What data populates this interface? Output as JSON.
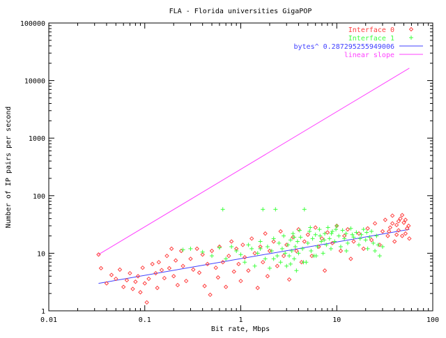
{
  "chart_data": {
    "type": "scatter",
    "title": "FLA - Florida universities GigaPOP",
    "xlabel": "Bit rate, Mbps",
    "ylabel": "Number of IP pairs per second",
    "xscale": "log",
    "yscale": "log",
    "xlim": [
      0.01,
      100
    ],
    "ylim": [
      1,
      100000
    ],
    "x_ticks": [
      {
        "value": 0.01,
        "label": "0.01"
      },
      {
        "value": 0.1,
        "label": "0.1"
      },
      {
        "value": 1,
        "label": "1"
      },
      {
        "value": 10,
        "label": "10"
      },
      {
        "value": 100,
        "label": "100"
      }
    ],
    "y_ticks": [
      {
        "value": 1,
        "label": "1"
      },
      {
        "value": 10,
        "label": "10"
      },
      {
        "value": 100,
        "label": "100"
      },
      {
        "value": 1000,
        "label": "1000"
      },
      {
        "value": 10000,
        "label": "10000"
      },
      {
        "value": 100000,
        "label": "100000"
      }
    ],
    "grid": false,
    "legend_position": "top-right",
    "series": [
      {
        "name": "Interface 0",
        "kind": "points",
        "marker": "diamond",
        "color": "#ff4040",
        "points": [
          [
            0.033,
            9.5
          ],
          [
            0.035,
            5.5
          ],
          [
            0.04,
            3
          ],
          [
            0.045,
            4.2
          ],
          [
            0.05,
            3.6
          ],
          [
            0.055,
            5.2
          ],
          [
            0.06,
            2.6
          ],
          [
            0.065,
            3.4
          ],
          [
            0.07,
            4.5
          ],
          [
            0.075,
            2.4
          ],
          [
            0.08,
            3.2
          ],
          [
            0.085,
            4
          ],
          [
            0.09,
            2.1
          ],
          [
            0.095,
            5.6
          ],
          [
            0.1,
            3
          ],
          [
            0.105,
            1.4
          ],
          [
            0.11,
            3.6
          ],
          [
            0.12,
            6.5
          ],
          [
            0.13,
            4.5
          ],
          [
            0.135,
            2.5
          ],
          [
            0.14,
            7
          ],
          [
            0.15,
            5.1
          ],
          [
            0.16,
            3.7
          ],
          [
            0.17,
            9
          ],
          [
            0.18,
            5.5
          ],
          [
            0.19,
            12
          ],
          [
            0.2,
            4
          ],
          [
            0.21,
            7.5
          ],
          [
            0.22,
            2.8
          ],
          [
            0.24,
            11
          ],
          [
            0.25,
            6
          ],
          [
            0.27,
            3.3
          ],
          [
            0.3,
            8
          ],
          [
            0.32,
            5.2
          ],
          [
            0.35,
            12
          ],
          [
            0.37,
            4.6
          ],
          [
            0.4,
            9.5
          ],
          [
            0.42,
            2.7
          ],
          [
            0.45,
            6.5
          ],
          [
            0.48,
            1.9
          ],
          [
            0.5,
            11
          ],
          [
            0.55,
            5.6
          ],
          [
            0.58,
            3.8
          ],
          [
            0.6,
            13
          ],
          [
            0.65,
            7
          ],
          [
            0.7,
            2.6
          ],
          [
            0.75,
            9
          ],
          [
            0.8,
            16
          ],
          [
            0.85,
            4.8
          ],
          [
            0.9,
            12
          ],
          [
            0.95,
            6.5
          ],
          [
            1,
            3.3
          ],
          [
            1.05,
            14
          ],
          [
            1.1,
            8.5
          ],
          [
            1.2,
            5
          ],
          [
            1.3,
            18
          ],
          [
            1.4,
            10
          ],
          [
            1.5,
            2.5
          ],
          [
            1.6,
            13
          ],
          [
            1.7,
            7
          ],
          [
            1.8,
            22
          ],
          [
            1.9,
            4
          ],
          [
            2,
            11
          ],
          [
            2.2,
            16
          ],
          [
            2.4,
            6
          ],
          [
            2.6,
            24
          ],
          [
            2.8,
            9
          ],
          [
            3,
            14
          ],
          [
            3.2,
            3.5
          ],
          [
            3.5,
            19
          ],
          [
            3.8,
            11
          ],
          [
            4,
            26
          ],
          [
            4.3,
            7
          ],
          [
            4.6,
            16
          ],
          [
            5,
            21
          ],
          [
            5.5,
            9
          ],
          [
            6,
            28
          ],
          [
            6.5,
            13
          ],
          [
            7,
            18
          ],
          [
            7.5,
            5
          ],
          [
            8,
            23
          ],
          [
            9,
            15
          ],
          [
            10,
            30
          ],
          [
            11,
            11
          ],
          [
            12,
            20
          ],
          [
            13,
            26
          ],
          [
            14,
            8
          ],
          [
            15,
            16
          ],
          [
            17,
            22
          ],
          [
            19,
            12
          ],
          [
            21,
            27
          ],
          [
            23,
            17
          ],
          [
            25,
            33
          ],
          [
            28,
            14
          ],
          [
            30,
            24
          ],
          [
            32,
            38
          ],
          [
            34,
            20
          ],
          [
            36,
            28
          ],
          [
            38,
            45
          ],
          [
            40,
            16
          ],
          [
            42,
            31
          ],
          [
            44,
            25
          ],
          [
            46,
            40
          ],
          [
            48,
            20
          ],
          [
            50,
            34
          ],
          [
            52,
            22
          ],
          [
            54,
            27
          ],
          [
            56,
            30
          ],
          [
            44,
            36
          ],
          [
            38,
            33
          ],
          [
            35,
            24
          ],
          [
            48,
            46
          ],
          [
            52,
            38
          ],
          [
            42,
            21
          ],
          [
            57,
            18
          ]
        ]
      },
      {
        "name": "Interface 1",
        "kind": "points",
        "marker": "plus",
        "color": "#40ff40",
        "points": [
          [
            0.25,
            11.5
          ],
          [
            0.3,
            12
          ],
          [
            0.4,
            10.5
          ],
          [
            0.5,
            9
          ],
          [
            0.6,
            12.5
          ],
          [
            0.65,
            58
          ],
          [
            0.7,
            8
          ],
          [
            0.8,
            13
          ],
          [
            0.9,
            11
          ],
          [
            1,
            9.5
          ],
          [
            1.1,
            7
          ],
          [
            1.2,
            14
          ],
          [
            1.3,
            12
          ],
          [
            1.4,
            6
          ],
          [
            1.5,
            10
          ],
          [
            1.6,
            16
          ],
          [
            1.7,
            58
          ],
          [
            1.8,
            8
          ],
          [
            1.9,
            13
          ],
          [
            2,
            5.5
          ],
          [
            2.1,
            11
          ],
          [
            2.2,
            18
          ],
          [
            2.3,
            58
          ],
          [
            2.4,
            9
          ],
          [
            2.5,
            15
          ],
          [
            2.6,
            7
          ],
          [
            2.7,
            12
          ],
          [
            2.8,
            20
          ],
          [
            2.9,
            10
          ],
          [
            3,
            6
          ],
          [
            3.1,
            14
          ],
          [
            3.2,
            9
          ],
          [
            3.3,
            17
          ],
          [
            3.4,
            11
          ],
          [
            3.5,
            22
          ],
          [
            3.6,
            8
          ],
          [
            3.7,
            13
          ],
          [
            3.8,
            5
          ],
          [
            3.9,
            16
          ],
          [
            4,
            10
          ],
          [
            4.2,
            19
          ],
          [
            4.4,
            12
          ],
          [
            4.6,
            58
          ],
          [
            4.8,
            7
          ],
          [
            5,
            15
          ],
          [
            5.2,
            24
          ],
          [
            5.4,
            11
          ],
          [
            5.6,
            18
          ],
          [
            5.8,
            9
          ],
          [
            6,
            21
          ],
          [
            6.3,
            13
          ],
          [
            6.6,
            26
          ],
          [
            6.9,
            16
          ],
          [
            7.2,
            10
          ],
          [
            7.5,
            22
          ],
          [
            7.8,
            14
          ],
          [
            8.1,
            28
          ],
          [
            8.4,
            18
          ],
          [
            8.7,
            12
          ],
          [
            9,
            24
          ],
          [
            9.5,
            16
          ],
          [
            10,
            30
          ],
          [
            10.5,
            20
          ],
          [
            11,
            13
          ],
          [
            11.5,
            25
          ],
          [
            12,
            18
          ],
          [
            12.5,
            22
          ],
          [
            13,
            15
          ],
          [
            14,
            27
          ],
          [
            15,
            19
          ],
          [
            16,
            23
          ],
          [
            17,
            14
          ],
          [
            18,
            21
          ],
          [
            19,
            26
          ],
          [
            20,
            17
          ],
          [
            21,
            12
          ],
          [
            22,
            19
          ],
          [
            23,
            24
          ],
          [
            24,
            15
          ],
          [
            25,
            11
          ],
          [
            26,
            20
          ],
          [
            27,
            14
          ],
          [
            28,
            9
          ],
          [
            30,
            13
          ],
          [
            4.1,
            25
          ],
          [
            5.3,
            28
          ],
          [
            6.7,
            20
          ],
          [
            8.8,
            22
          ],
          [
            3.6,
            19
          ],
          [
            2.2,
            8
          ],
          [
            1.6,
            12
          ],
          [
            7.4,
            17
          ],
          [
            9.8,
            26
          ],
          [
            12.6,
            11
          ],
          [
            14.5,
            21
          ],
          [
            17.5,
            18
          ],
          [
            20.5,
            23
          ],
          [
            4.5,
            7
          ],
          [
            6.1,
            9
          ],
          [
            3.3,
            6.5
          ]
        ]
      },
      {
        "name": "bytes^ 0.287295255949006",
        "kind": "line",
        "color": "#4040ff",
        "points": [
          [
            0.033,
            3
          ],
          [
            57,
            26
          ]
        ]
      },
      {
        "name": "linear slope",
        "kind": "line",
        "color": "#ff40ff",
        "points": [
          [
            0.033,
            9.5
          ],
          [
            57,
            16400
          ]
        ]
      }
    ]
  }
}
